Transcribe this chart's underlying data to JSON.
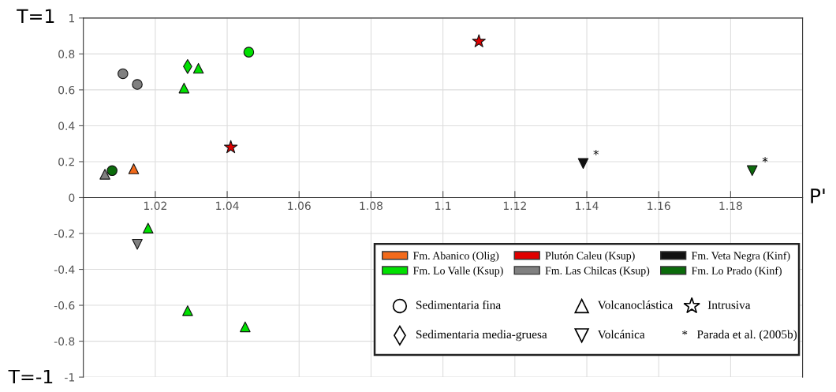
{
  "chart_data": {
    "type": "scatter",
    "xlabel": "P'",
    "xlim": [
      1.0,
      1.2
    ],
    "xticks": [
      1.02,
      1.04,
      1.06,
      1.08,
      {
        "value": 1.1,
        "label": "1.1"
      },
      1.12,
      1.14,
      1.16,
      1.18
    ],
    "ylim": [
      -1,
      1
    ],
    "yticks": [
      -1,
      -0.8,
      -0.6,
      -0.4,
      -0.2,
      0,
      0.2,
      0.4,
      0.6,
      0.8,
      1
    ],
    "grid": true,
    "legend": "bottom right",
    "series": [
      {
        "name": "Fm. Abanico (Olig)",
        "color": "#f26a1b",
        "marker": "triangle",
        "x": [
          1.014
        ],
        "values": [
          0.16
        ]
      },
      {
        "name": "Plutón Caleu (Ksup)",
        "color": "#e00000",
        "marker": "star",
        "x": [
          1.041,
          1.11
        ],
        "values": [
          0.28,
          0.87
        ]
      },
      {
        "name": "Fm. Veta Negra (Kinf)",
        "color": "#111111",
        "marker": "triangle_down",
        "x": [
          1.139
        ],
        "values": [
          0.19
        ]
      },
      {
        "name": "Fm. Lo Valle (Ksup)",
        "color": "#00e000",
        "marker": "triangle",
        "x": [
          1.032,
          1.028,
          1.018,
          1.029,
          1.045
        ],
        "values": [
          0.72,
          0.61,
          -0.17,
          -0.63,
          -0.72
        ]
      },
      {
        "name": "Fm. Las Chilcas (Ksup)",
        "color": "#808080",
        "marker": "circle",
        "x": [
          1.011,
          1.015
        ],
        "values": [
          0.69,
          0.63
        ]
      },
      {
        "name": "Fm. Lo Prado (Kinf)",
        "color": "#0b6b0b",
        "marker": "circle",
        "x": [
          1.008
        ],
        "values": [
          0.15
        ]
      },
      {
        "color": "#00e000",
        "marker": "diamond",
        "x": [
          1.029
        ],
        "values": [
          0.73
        ]
      },
      {
        "color": "#00e000",
        "marker": "circle",
        "x": [
          1.046
        ],
        "values": [
          0.81
        ]
      },
      {
        "color": "#808080",
        "marker": "triangle",
        "x": [
          1.006
        ],
        "values": [
          0.13
        ]
      },
      {
        "color": "#808080",
        "marker": "triangle_down",
        "x": [
          1.015
        ],
        "values": [
          -0.26
        ]
      },
      {
        "color": "#0b6b0b",
        "marker": "triangle_down",
        "x": [
          1.186
        ],
        "values": [
          0.15
        ]
      }
    ],
    "annotations": [
      {
        "text": "*",
        "x": 1.139,
        "y": 0.19
      },
      {
        "text": "*",
        "x": 1.186,
        "y": 0.15
      },
      "T=1",
      "T=-1",
      "Sedimentaria fina",
      "Sedimentaria media-gruesa",
      "Volcanoclástica",
      "Volcánica",
      "Intrusiva",
      "*   Parada et al. (2005b)"
    ]
  }
}
